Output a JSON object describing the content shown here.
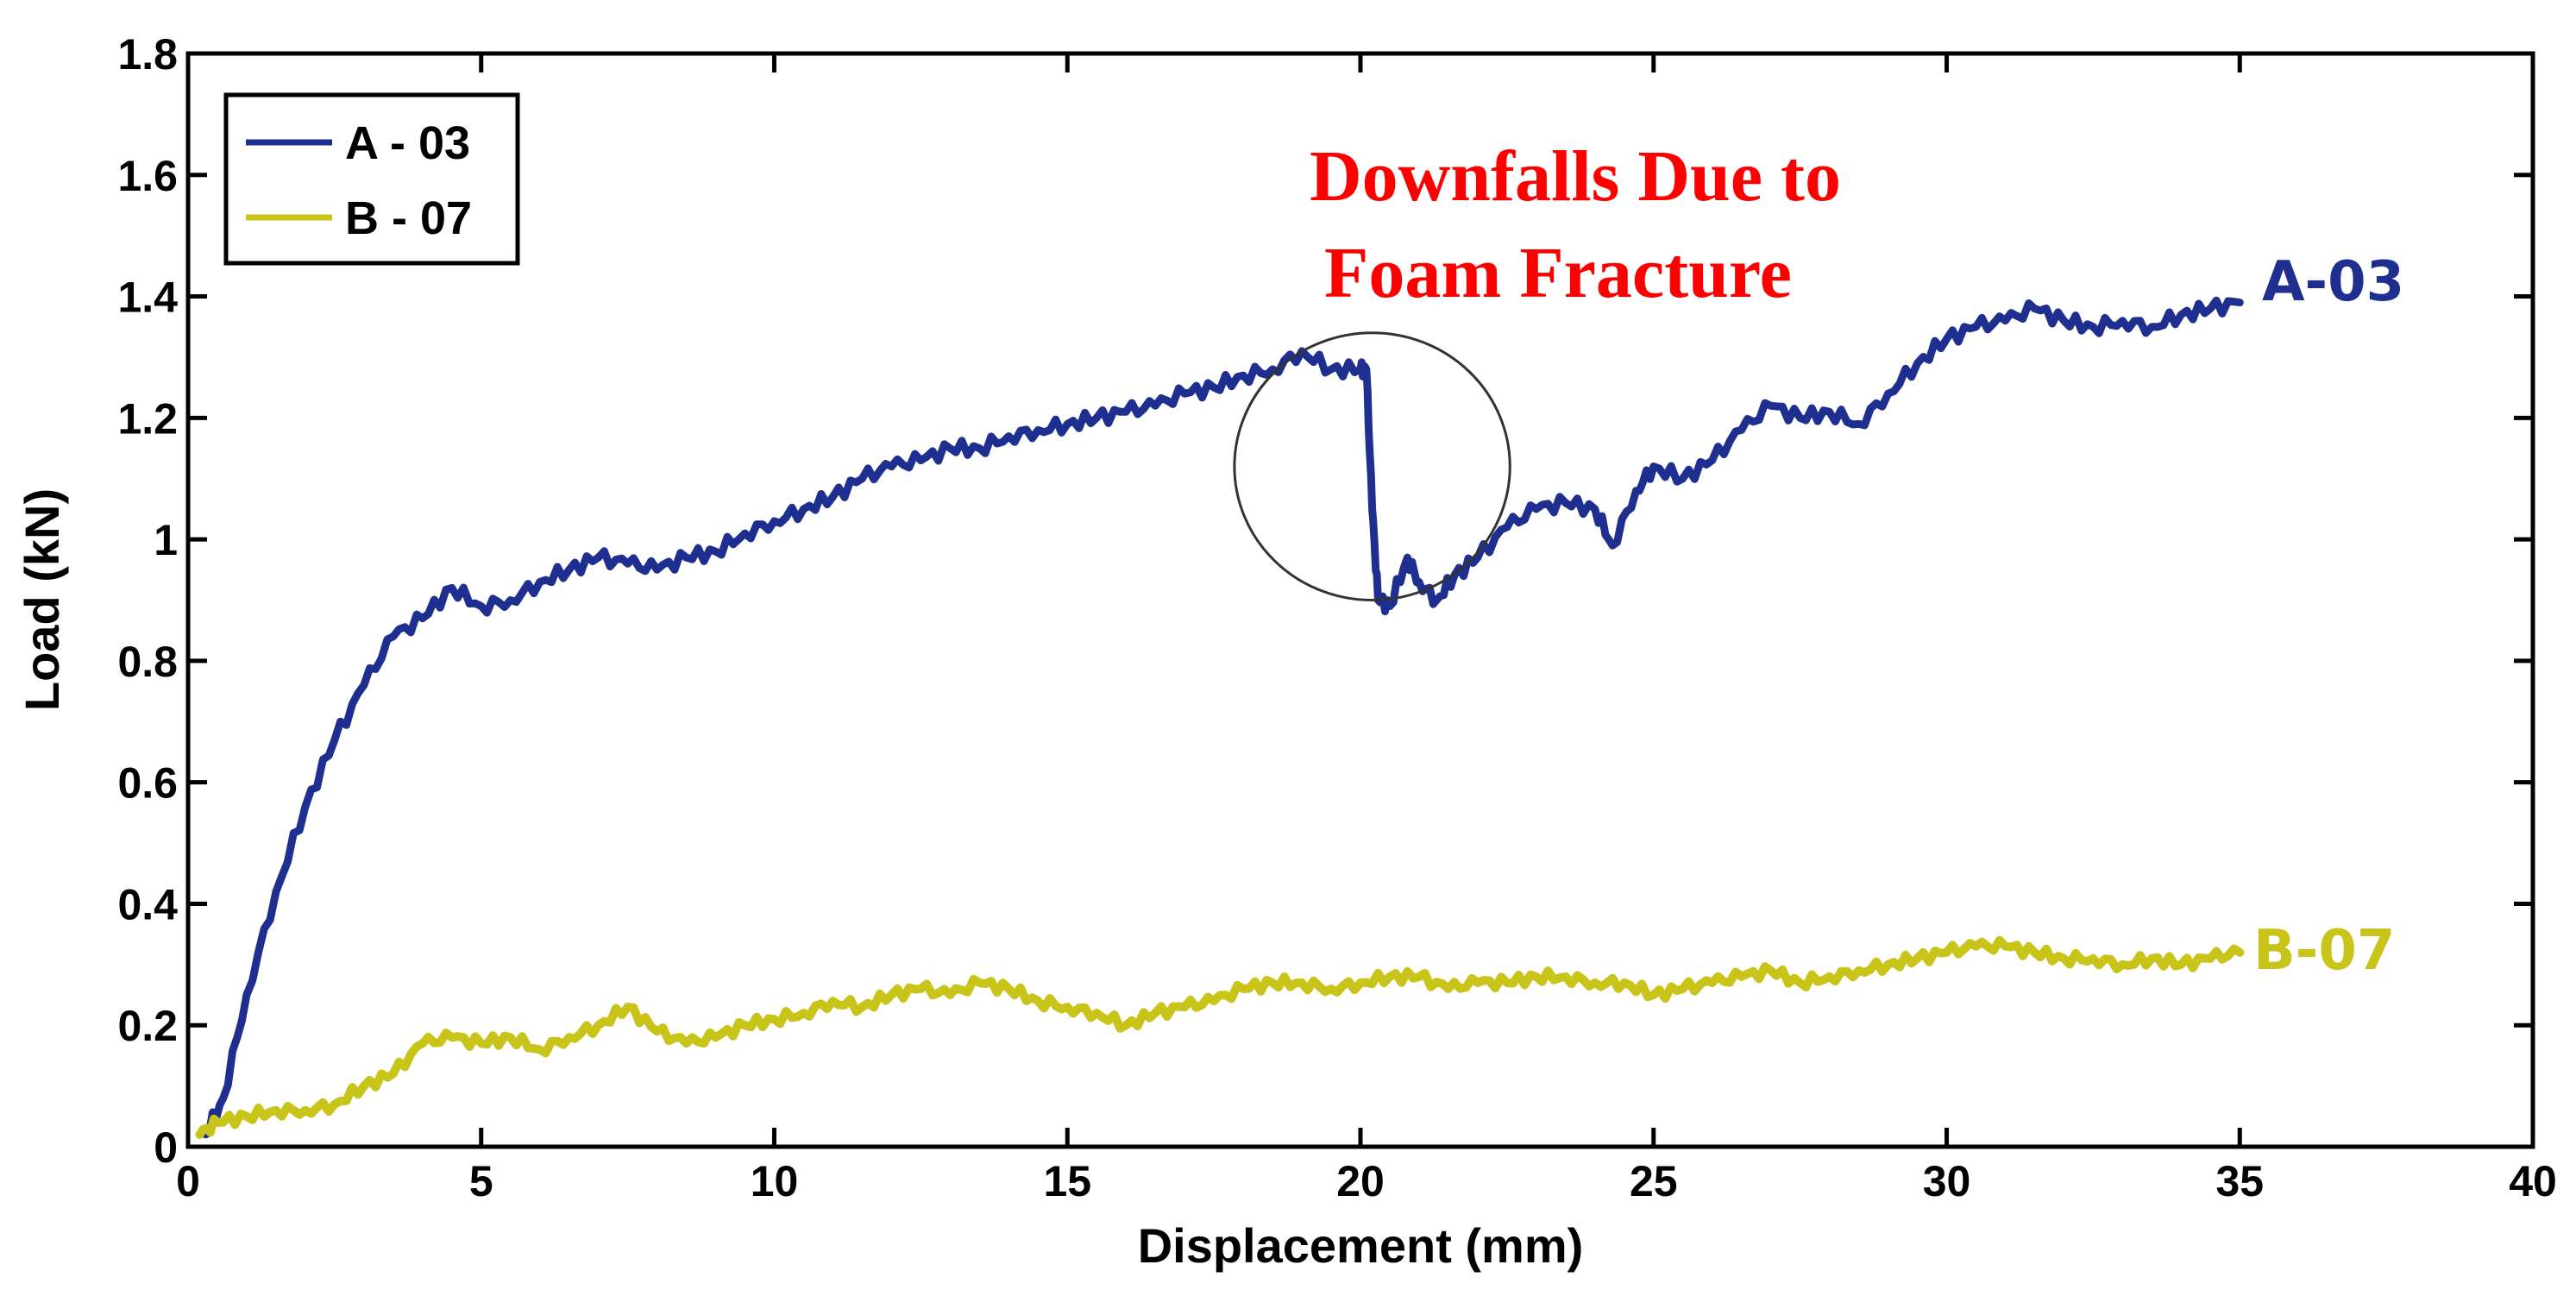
{
  "chart_data": {
    "type": "line",
    "title": "",
    "xlabel": "Displacement (mm)",
    "ylabel": "Load (kN)",
    "xlim": [
      0,
      40
    ],
    "ylim": [
      0,
      1.8
    ],
    "x_ticks": [
      0,
      5,
      10,
      15,
      20,
      25,
      30,
      35,
      40
    ],
    "y_ticks": [
      0,
      0.2,
      0.4,
      0.6,
      0.8,
      1,
      1.2,
      1.4,
      1.6,
      1.8
    ],
    "x_tick_labels": [
      "0",
      "5",
      "10",
      "15",
      "20",
      "25",
      "30",
      "35",
      "40"
    ],
    "y_tick_labels": [
      "0",
      "0.2",
      "0.4",
      "0.6",
      "0.8",
      "1",
      "1.2",
      "1.4",
      "1.6",
      "1.8"
    ],
    "grid": false,
    "legend_position": "top-left",
    "legend": [
      "A - 03",
      "B - 07"
    ],
    "series": [
      {
        "name": "A - 03",
        "end_label": "A-03",
        "color": "#1f2f8f",
        "x": [
          0.3,
          0.6,
          1.0,
          1.5,
          2.0,
          2.5,
          3.0,
          3.5,
          4.0,
          4.5,
          5.0,
          5.5,
          6.0,
          6.5,
          7.0,
          7.5,
          8.0,
          8.5,
          9.0,
          9.5,
          10.0,
          10.5,
          11.0,
          11.5,
          12.0,
          12.5,
          13.0,
          13.5,
          14.0,
          14.5,
          15.0,
          15.5,
          16.0,
          16.5,
          17.0,
          17.5,
          18.0,
          18.5,
          19.0,
          19.5,
          20.0,
          20.1,
          20.2,
          20.3,
          20.5,
          20.8,
          21.0,
          21.3,
          21.6,
          22.0,
          22.5,
          23.0,
          23.5,
          24.0,
          24.3,
          24.7,
          25.0,
          25.5,
          26.0,
          26.5,
          27.0,
          27.5,
          28.0,
          28.5,
          29.0,
          29.5,
          30.0,
          30.5,
          31.0,
          31.5,
          32.0,
          32.5,
          33.0,
          33.5,
          34.0,
          34.5,
          35.0
        ],
        "y": [
          0.02,
          0.08,
          0.25,
          0.42,
          0.56,
          0.67,
          0.76,
          0.84,
          0.87,
          0.92,
          0.89,
          0.9,
          0.93,
          0.95,
          0.97,
          0.96,
          0.95,
          0.97,
          0.98,
          1.01,
          1.03,
          1.05,
          1.07,
          1.1,
          1.12,
          1.13,
          1.15,
          1.15,
          1.17,
          1.18,
          1.19,
          1.2,
          1.21,
          1.22,
          1.24,
          1.25,
          1.27,
          1.28,
          1.31,
          1.28,
          1.28,
          1.28,
          1.05,
          0.9,
          0.89,
          0.97,
          0.93,
          0.9,
          0.94,
          0.97,
          1.02,
          1.05,
          1.06,
          1.05,
          0.99,
          1.08,
          1.12,
          1.1,
          1.13,
          1.18,
          1.22,
          1.2,
          1.21,
          1.19,
          1.24,
          1.29,
          1.33,
          1.35,
          1.36,
          1.38,
          1.36,
          1.35,
          1.36,
          1.35,
          1.37,
          1.38,
          1.39
        ]
      },
      {
        "name": "B - 07",
        "end_label": "B-07",
        "color": "#c8c41a",
        "x": [
          0.2,
          0.5,
          1.0,
          1.5,
          2.0,
          2.5,
          3.0,
          3.5,
          4.0,
          4.5,
          5.0,
          5.5,
          6.0,
          6.5,
          7.0,
          7.5,
          8.0,
          8.5,
          9.0,
          9.5,
          10.0,
          10.5,
          11.0,
          11.5,
          12.0,
          12.5,
          13.0,
          13.5,
          14.0,
          14.5,
          15.0,
          15.5,
          16.0,
          16.5,
          17.0,
          17.5,
          18.0,
          18.5,
          19.0,
          19.5,
          20.0,
          20.5,
          21.0,
          21.5,
          22.0,
          22.5,
          23.0,
          23.5,
          24.0,
          24.5,
          25.0,
          25.5,
          26.0,
          26.5,
          27.0,
          27.5,
          28.0,
          28.5,
          29.0,
          29.5,
          30.0,
          30.5,
          31.0,
          31.5,
          32.0,
          32.5,
          33.0,
          33.5,
          34.0,
          34.5,
          35.0
        ],
        "y": [
          0.02,
          0.04,
          0.05,
          0.06,
          0.06,
          0.07,
          0.1,
          0.12,
          0.17,
          0.18,
          0.17,
          0.18,
          0.16,
          0.18,
          0.2,
          0.23,
          0.19,
          0.17,
          0.18,
          0.2,
          0.21,
          0.22,
          0.24,
          0.23,
          0.25,
          0.26,
          0.25,
          0.27,
          0.26,
          0.24,
          0.23,
          0.22,
          0.2,
          0.22,
          0.23,
          0.24,
          0.26,
          0.27,
          0.27,
          0.26,
          0.27,
          0.28,
          0.28,
          0.26,
          0.27,
          0.27,
          0.28,
          0.28,
          0.27,
          0.27,
          0.25,
          0.26,
          0.27,
          0.28,
          0.29,
          0.27,
          0.28,
          0.29,
          0.3,
          0.31,
          0.32,
          0.33,
          0.33,
          0.32,
          0.31,
          0.31,
          0.3,
          0.31,
          0.3,
          0.31,
          0.32
        ]
      }
    ],
    "annotations": [
      {
        "text_lines": [
          "Downfalls Due to",
          "Foam Fracture"
        ],
        "color": "#ff0000",
        "marker": "circle",
        "center": {
          "x": 20.2,
          "y": 1.12
        },
        "radius_x": 2.35
      }
    ]
  }
}
